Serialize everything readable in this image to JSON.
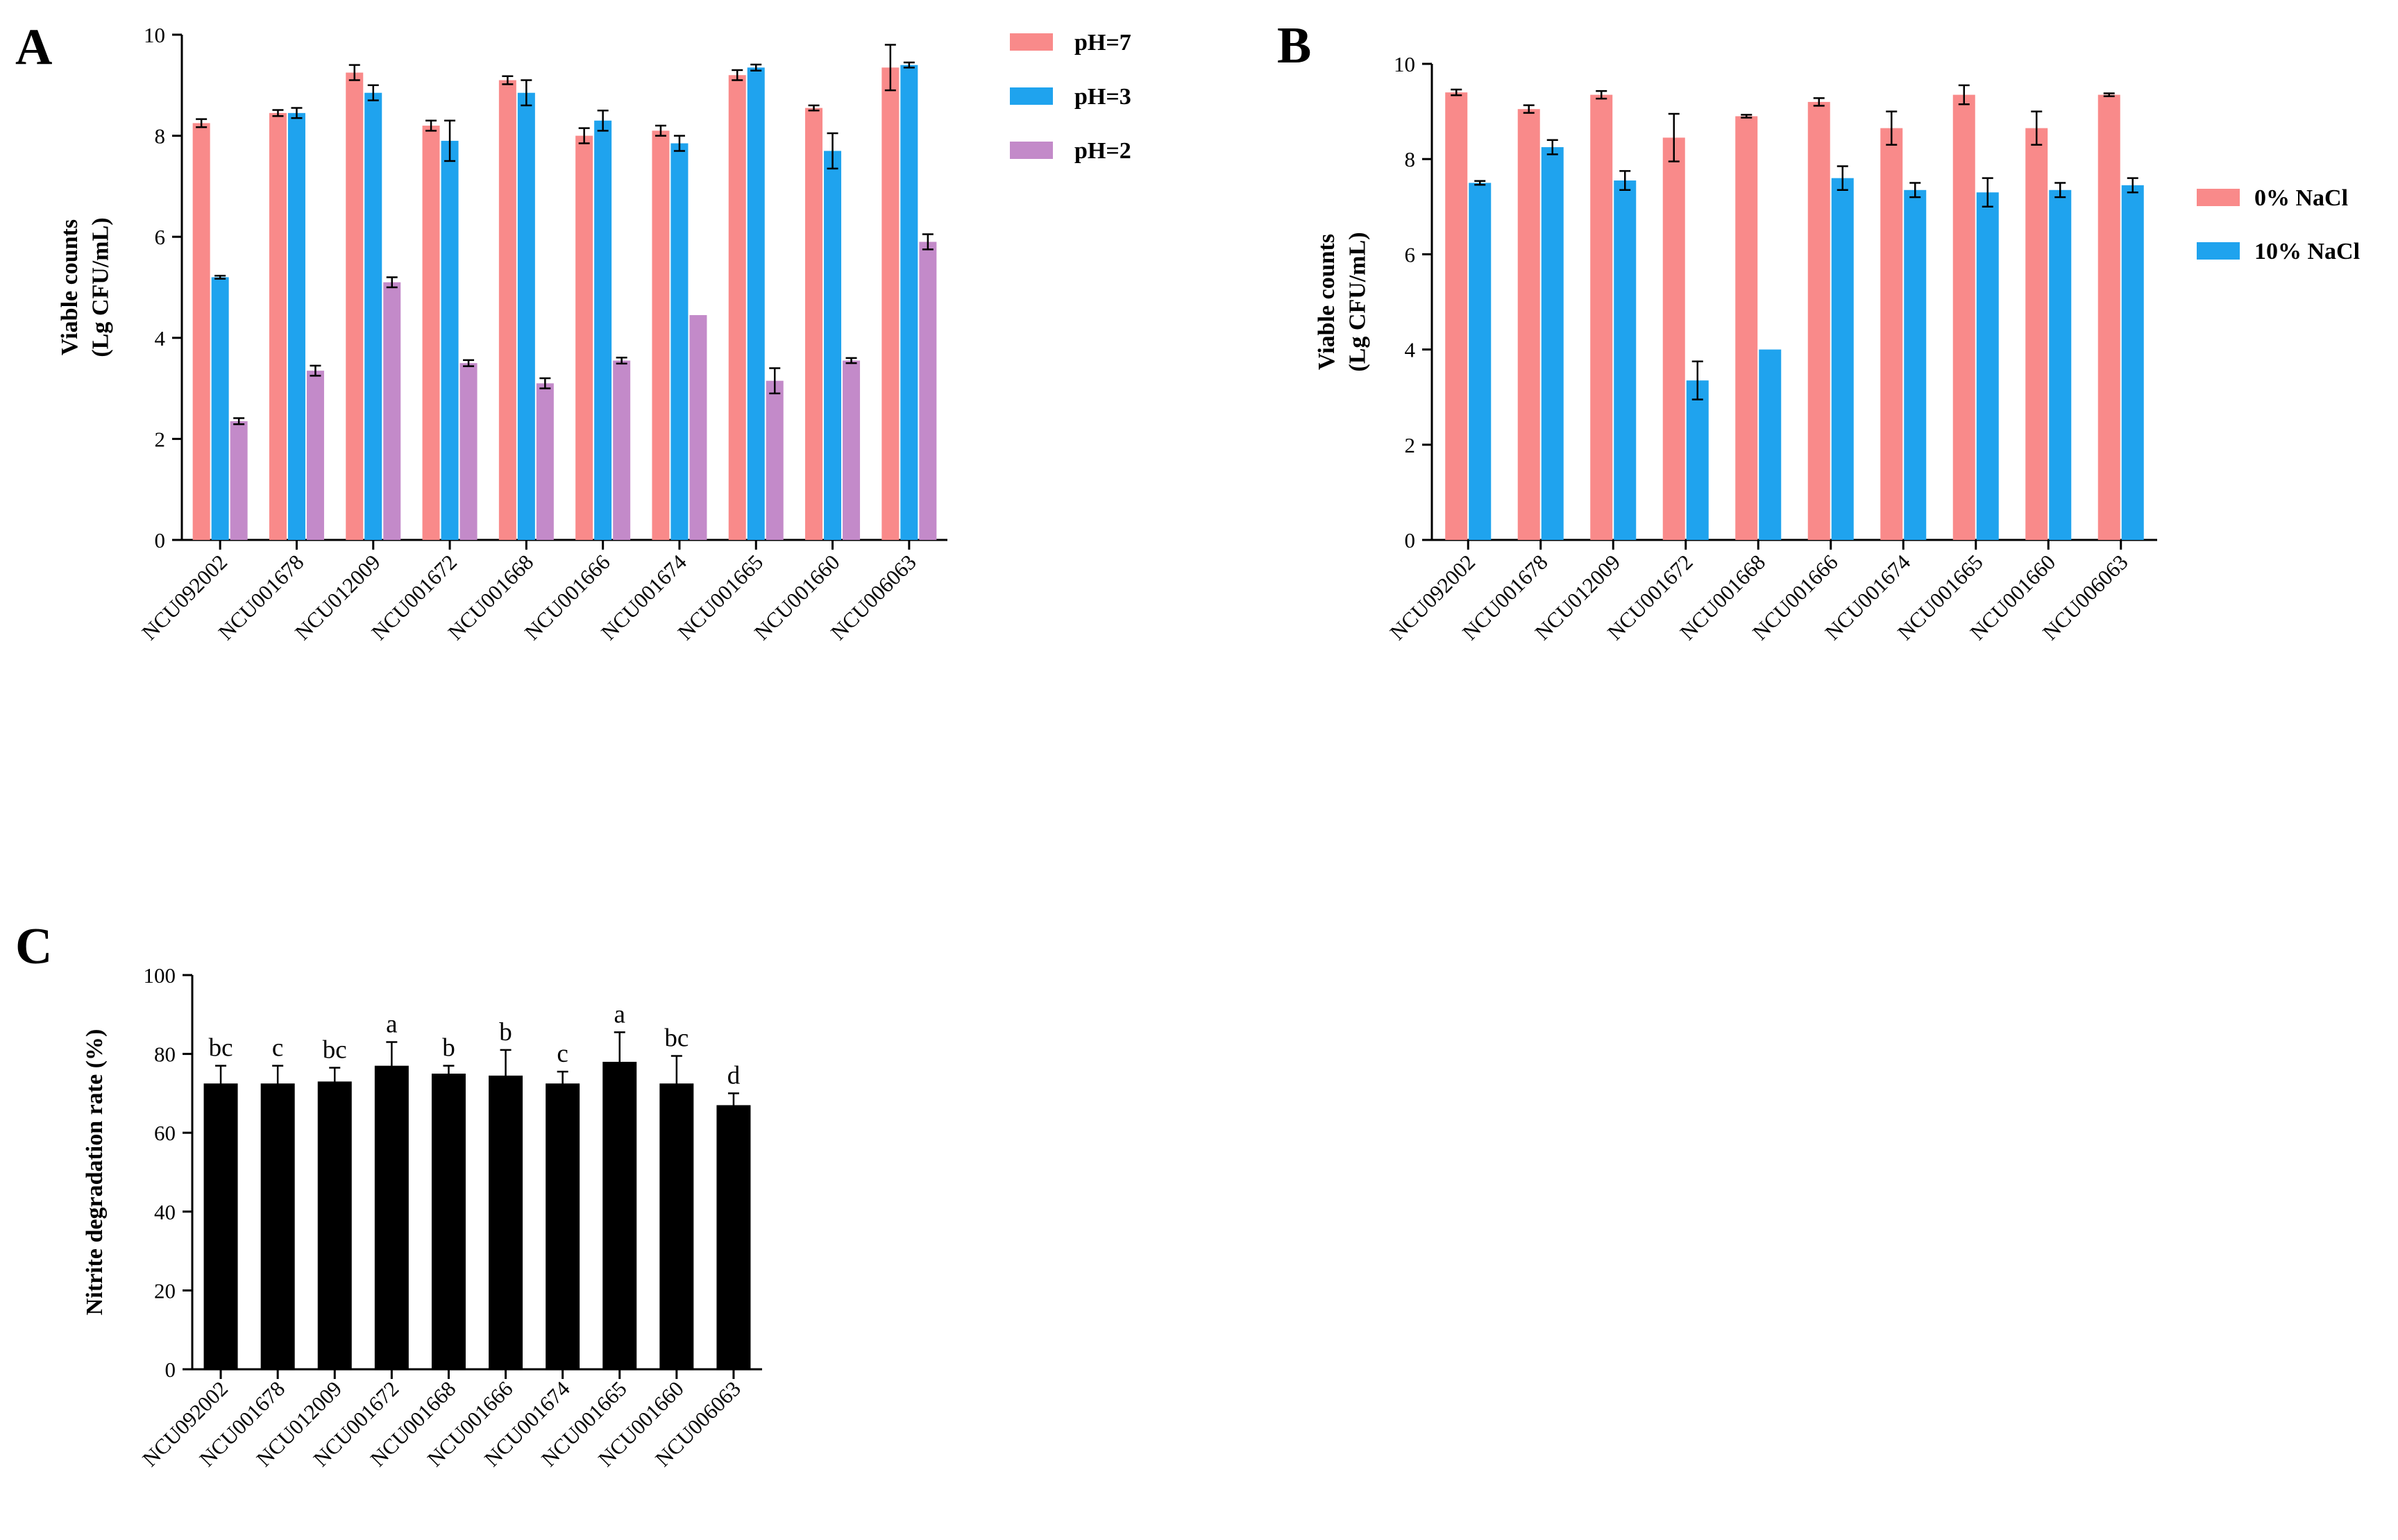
{
  "figure": {
    "panels": [
      "A",
      "B",
      "C"
    ]
  },
  "chart_data": [
    {
      "panel": "A",
      "type": "bar",
      "ylabel": [
        "Viable counts",
        "(Lg CFU/mL)"
      ],
      "ylim": [
        0,
        10
      ],
      "yticks": [
        0,
        2,
        4,
        6,
        8,
        10
      ],
      "categories": [
        "NCU092002",
        "NCU001678",
        "NCU012009",
        "NCU001672",
        "NCU001668",
        "NCU001666",
        "NCU001674",
        "NCU001665",
        "NCU001660",
        "NCU006063"
      ],
      "series": [
        {
          "name": "pH=7",
          "color": "#f98a8a",
          "values": [
            8.25,
            8.45,
            9.25,
            8.2,
            9.1,
            8.0,
            8.1,
            9.2,
            8.55,
            9.35
          ],
          "errors": [
            0.08,
            0.06,
            0.15,
            0.1,
            0.08,
            0.15,
            0.1,
            0.1,
            0.05,
            0.45
          ]
        },
        {
          "name": "pH=3",
          "color": "#1fa3ee",
          "values": [
            5.2,
            8.45,
            8.85,
            7.9,
            8.85,
            8.3,
            7.85,
            9.35,
            7.7,
            9.4
          ],
          "errors": [
            0.03,
            0.1,
            0.15,
            0.4,
            0.25,
            0.2,
            0.15,
            0.06,
            0.35,
            0.05
          ]
        },
        {
          "name": "pH=2",
          "color": "#c38ac9",
          "values": [
            2.35,
            3.35,
            5.1,
            3.5,
            3.1,
            3.55,
            4.45,
            3.15,
            3.55,
            5.9
          ],
          "errors": [
            0.06,
            0.1,
            0.1,
            0.06,
            0.1,
            0.06,
            0.0,
            0.25,
            0.05,
            0.15
          ]
        }
      ],
      "legend_position": "right"
    },
    {
      "panel": "B",
      "type": "bar",
      "ylabel": [
        "Viable counts",
        "(Lg CFU/mL)"
      ],
      "ylim": [
        0,
        10
      ],
      "yticks": [
        0,
        2,
        4,
        6,
        8,
        10
      ],
      "categories": [
        "NCU092002",
        "NCU001678",
        "NCU012009",
        "NCU001672",
        "NCU001668",
        "NCU001666",
        "NCU001674",
        "NCU001665",
        "NCU001660",
        "NCU006063"
      ],
      "series": [
        {
          "name": "0% NaCl",
          "color": "#f98a8a",
          "values": [
            9.4,
            9.05,
            9.35,
            8.45,
            8.9,
            9.2,
            8.65,
            9.35,
            8.65,
            9.35
          ],
          "errors": [
            0.06,
            0.08,
            0.08,
            0.5,
            0.03,
            0.08,
            0.35,
            0.2,
            0.35,
            0.03
          ]
        },
        {
          "name": "10% NaCl",
          "color": "#1fa3ee",
          "values": [
            7.5,
            8.25,
            7.55,
            3.35,
            4.0,
            7.6,
            7.35,
            7.3,
            7.35,
            7.45
          ],
          "errors": [
            0.04,
            0.15,
            0.2,
            0.4,
            0.0,
            0.25,
            0.15,
            0.3,
            0.15,
            0.15
          ]
        }
      ],
      "legend_position": "right"
    },
    {
      "panel": "C",
      "type": "bar",
      "ylabel": [
        "Nitrite degradation rate (%)"
      ],
      "ylim": [
        0,
        100
      ],
      "yticks": [
        0,
        20,
        40,
        60,
        80,
        100
      ],
      "categories": [
        "NCU092002",
        "NCU001678",
        "NCU012009",
        "NCU001672",
        "NCU001668",
        "NCU001666",
        "NCU001674",
        "NCU001665",
        "NCU001660",
        "NCU006063"
      ],
      "series": [
        {
          "name": "",
          "color": "#000000",
          "values": [
            72.5,
            72.5,
            73,
            77,
            75,
            74.5,
            72.5,
            78,
            72.5,
            67
          ],
          "errors": [
            4.5,
            4.5,
            3.5,
            6,
            2,
            6.5,
            3,
            7.5,
            7,
            3
          ]
        }
      ],
      "significance": [
        "bc",
        "c",
        "bc",
        "a",
        "b",
        "b",
        "c",
        "a",
        "bc",
        "d"
      ]
    }
  ]
}
